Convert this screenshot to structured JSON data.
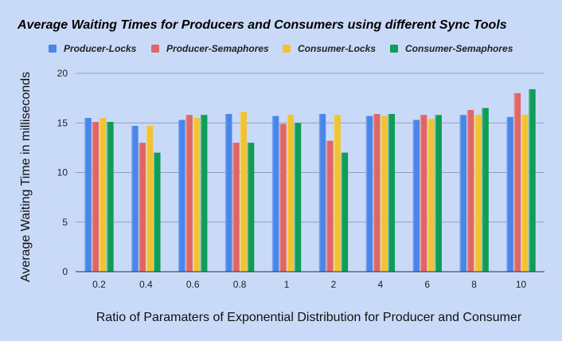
{
  "chart_data": {
    "type": "bar",
    "title": "Average Waiting Times for Producers and Consumers using different Sync Tools",
    "xlabel": "Ratio of Paramaters of Exponential Distribution for Producer and Consumer",
    "ylabel": "Average Waiting Time in milliseconds",
    "categories": [
      "0.2",
      "0.4",
      "0.6",
      "0.8",
      "1",
      "2",
      "4",
      "6",
      "8",
      "10"
    ],
    "ylim": [
      0,
      20
    ],
    "yticks": [
      0,
      5,
      10,
      15,
      20
    ],
    "grid": true,
    "legend_position": "top",
    "series": [
      {
        "name": "Producer-Locks",
        "color": "#4a86e8",
        "values": [
          15.5,
          14.7,
          15.3,
          15.9,
          15.7,
          15.9,
          15.7,
          15.3,
          15.8,
          15.6
        ]
      },
      {
        "name": "Producer-Semaphores",
        "color": "#e06666",
        "values": [
          15.1,
          13.0,
          15.8,
          13.0,
          14.9,
          13.2,
          15.9,
          15.8,
          16.3,
          18.0
        ]
      },
      {
        "name": "Consumer-Locks",
        "color": "#f1c232",
        "values": [
          15.5,
          14.7,
          15.5,
          16.1,
          15.8,
          15.8,
          15.7,
          15.4,
          15.8,
          15.8
        ]
      },
      {
        "name": "Consumer-Semaphores",
        "color": "#0f9d58",
        "values": [
          15.1,
          12.0,
          15.8,
          13.0,
          15.0,
          12.0,
          15.9,
          15.8,
          16.5,
          18.4
        ]
      }
    ]
  }
}
